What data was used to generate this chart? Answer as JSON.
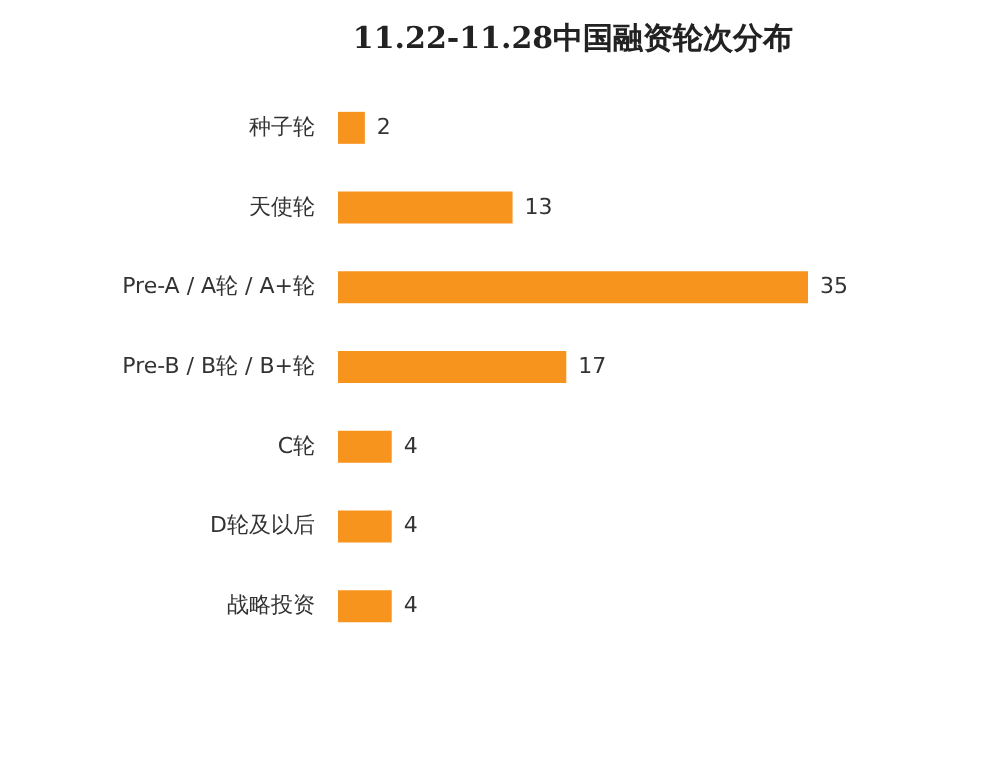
{
  "chart_data": {
    "type": "bar",
    "orientation": "horizontal",
    "title": "11.22-11.28中国融资轮次分布",
    "categories": [
      "种子轮",
      "天使轮",
      "Pre-A / A轮 / A+轮",
      "Pre-B / B轮 / B+轮",
      "C轮",
      "D轮及以后",
      "战略投资"
    ],
    "values": [
      2,
      13,
      35,
      17,
      4,
      4,
      4
    ],
    "color": "#f7941d",
    "data_labels": true,
    "grid": false
  }
}
